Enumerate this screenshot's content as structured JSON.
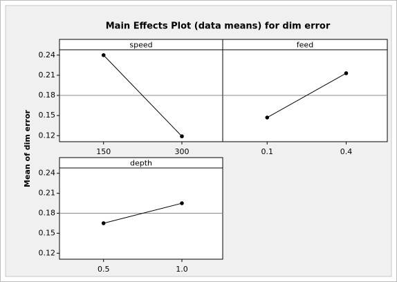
{
  "chart_data": {
    "type": "line",
    "title": "Main Effects Plot (data means) for dim error",
    "ylabel": "Mean of dim error",
    "ylim": [
      0.111,
      0.248
    ],
    "yticks": [
      0.12,
      0.15,
      0.18,
      0.21,
      0.24
    ],
    "reference_line": 0.18,
    "color": "#000000",
    "panels": [
      {
        "name": "speed",
        "categories": [
          "150",
          "300"
        ],
        "values": [
          0.24,
          0.119
        ]
      },
      {
        "name": "feed",
        "categories": [
          "0.1",
          "0.4"
        ],
        "values": [
          0.147,
          0.213
        ]
      },
      {
        "name": "depth",
        "categories": [
          "0.5",
          "1.0"
        ],
        "values": [
          0.165,
          0.195
        ]
      }
    ]
  }
}
